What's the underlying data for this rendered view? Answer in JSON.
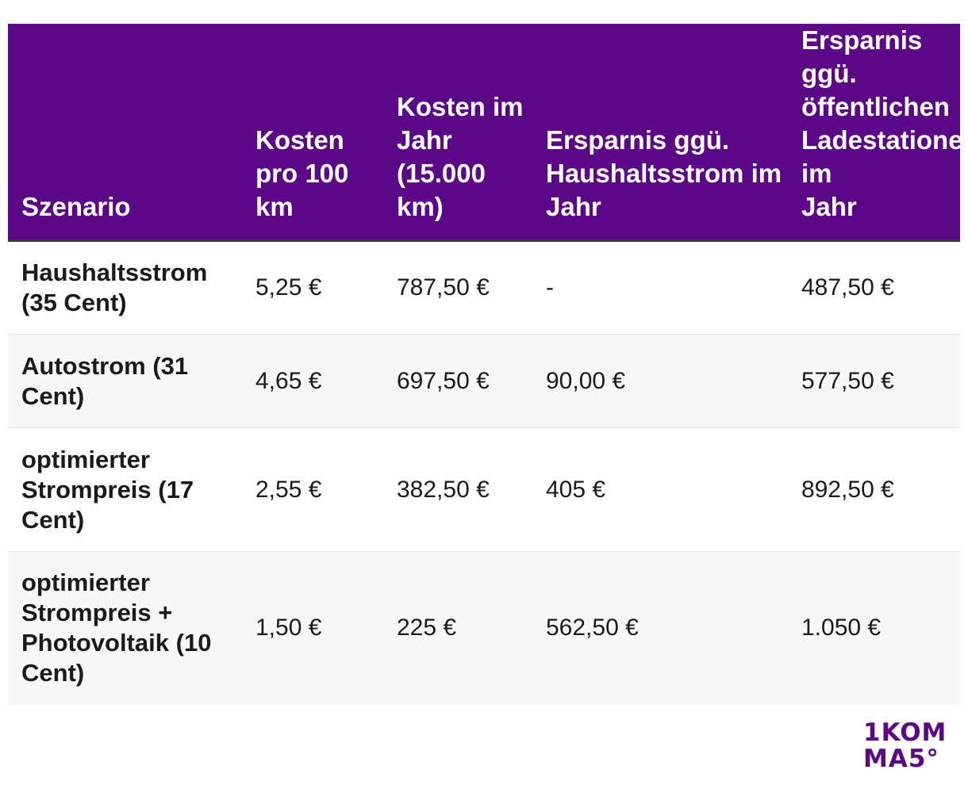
{
  "table": {
    "headers": [
      "Szenario",
      "Kosten pro 100 km",
      "Kosten im Jahr (15.000 km)",
      "Ersparnis ggü. Haushaltsstrom im Jahr",
      "Ersparnis ggü. öffentlichen Ladestationen im Jahr"
    ],
    "rows": [
      [
        "Haushaltsstrom (35 Cent)",
        "5,25 €",
        "787,50 €",
        "-",
        "487,50 €"
      ],
      [
        "Autostrom (31 Cent)",
        "4,65 €",
        "697,50 €",
        "90,00 €",
        "577,50 €"
      ],
      [
        "optimierter Strompreis (17 Cent)",
        "2,55 €",
        "382,50 €",
        "405 €",
        "892,50 €"
      ],
      [
        "optimierter Strompreis + Photovoltaik (10 Cent)",
        "1,50 €",
        "225 €",
        "562,50 €",
        "1.050 €"
      ]
    ]
  },
  "logo": {
    "line1": "1KOM",
    "line2": "MA5°",
    "color": "#5b0788"
  },
  "colors": {
    "header_bg": "#5b0788",
    "header_text": "#ffffff",
    "row_alt_bg": "#f7f7f7"
  }
}
